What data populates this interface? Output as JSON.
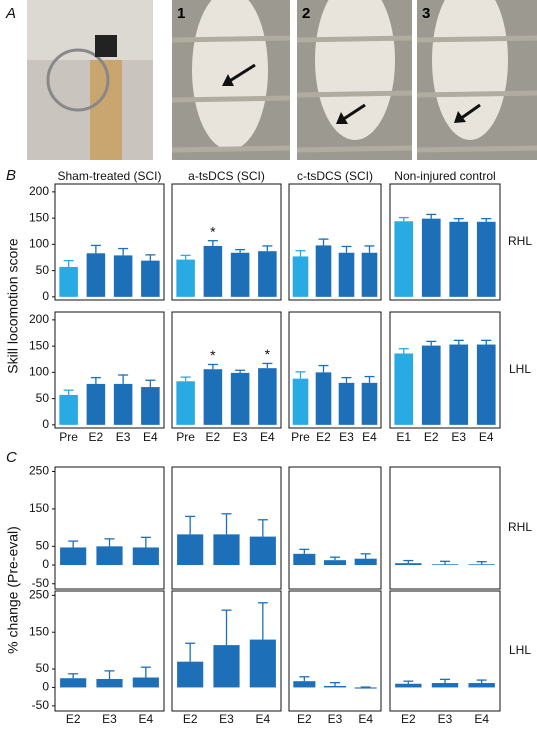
{
  "panel_labels": [
    "A",
    "B",
    "C"
  ],
  "photo_labels": [
    "1",
    "2",
    "3"
  ],
  "panel_b_ylabel": "Skill locomotion score",
  "panel_c_ylabel": "% change (Pre-eval)",
  "chart_data": [
    {
      "type": "bar",
      "title": "Sham-treated (SCI)",
      "categories": [
        null,
        null,
        null,
        null
      ],
      "values": [
        57,
        83,
        79,
        69
      ],
      "errors": [
        12,
        15,
        13,
        11
      ],
      "colors": [
        "#2aaae2",
        "#1d70b8",
        "#1d70b8",
        "#1d70b8"
      ],
      "ylim": [
        -6,
        215
      ],
      "yticks": [
        0,
        50,
        100,
        150,
        200
      ]
    },
    {
      "type": "bar",
      "title": "a-tsDCS (SCI)",
      "categories": [
        null,
        null,
        null,
        null
      ],
      "values": [
        71,
        97,
        84,
        87
      ],
      "errors": [
        8,
        10,
        6,
        10
      ],
      "colors": [
        "#2aaae2",
        "#1d70b8",
        "#1d70b8",
        "#1d70b8"
      ],
      "ylim": [
        -6,
        215
      ],
      "significance": [
        false,
        true,
        false,
        false
      ],
      "significance_marker": "*"
    },
    {
      "type": "bar",
      "title": "c-tsDCS (SCI)",
      "categories": [
        null,
        null,
        null,
        null
      ],
      "values": [
        77,
        98,
        84,
        84
      ],
      "errors": [
        11,
        12,
        12,
        13
      ],
      "colors": [
        "#2aaae2",
        "#1d70b8",
        "#1d70b8",
        "#1d70b8"
      ],
      "ylim": [
        -6,
        215
      ]
    },
    {
      "type": "bar",
      "title": "Non-injured control",
      "categories": [
        null,
        null,
        null,
        null
      ],
      "values": [
        144,
        149,
        143,
        143
      ],
      "errors": [
        7,
        8,
        6,
        6
      ],
      "colors": [
        "#2aaae2",
        "#1d70b8",
        "#1d70b8",
        "#1d70b8"
      ],
      "ylim": [
        -6,
        215
      ],
      "row_label": "RHL"
    },
    {
      "type": "bar",
      "categories": [
        "Pre",
        "E2",
        "E3",
        "E4"
      ],
      "values": [
        57,
        78,
        78,
        72
      ],
      "errors": [
        9,
        12,
        17,
        13
      ],
      "colors": [
        "#2aaae2",
        "#1d70b8",
        "#1d70b8",
        "#1d70b8"
      ],
      "ylim": [
        -6,
        215
      ],
      "yticks": [
        0,
        50,
        100,
        150,
        200
      ]
    },
    {
      "type": "bar",
      "categories": [
        "Pre",
        "E2",
        "E3",
        "E4"
      ],
      "values": [
        83,
        106,
        99,
        108
      ],
      "errors": [
        8,
        9,
        5,
        9
      ],
      "colors": [
        "#2aaae2",
        "#1d70b8",
        "#1d70b8",
        "#1d70b8"
      ],
      "ylim": [
        -6,
        215
      ],
      "significance": [
        false,
        true,
        false,
        true
      ],
      "significance_marker": "*"
    },
    {
      "type": "bar",
      "categories": [
        "Pre",
        "E2",
        "E3",
        "E4"
      ],
      "values": [
        88,
        100,
        80,
        80
      ],
      "errors": [
        13,
        13,
        10,
        12
      ],
      "colors": [
        "#2aaae2",
        "#1d70b8",
        "#1d70b8",
        "#1d70b8"
      ],
      "ylim": [
        -6,
        215
      ]
    },
    {
      "type": "bar",
      "categories": [
        "E1",
        "E2",
        "E3",
        "E4"
      ],
      "values": [
        136,
        151,
        153,
        153
      ],
      "errors": [
        9,
        8,
        8,
        8
      ],
      "colors": [
        "#2aaae2",
        "#1d70b8",
        "#1d70b8",
        "#1d70b8"
      ],
      "ylim": [
        -6,
        215
      ],
      "row_label": "LHL"
    },
    {
      "type": "bar",
      "categories": [
        null,
        null,
        null
      ],
      "values": [
        47,
        50,
        47
      ],
      "errors": [
        17,
        20,
        27
      ],
      "colors": [
        "#1d70b8",
        "#1d70b8",
        "#1d70b8"
      ],
      "ylim": [
        -64,
        262
      ],
      "yticks": [
        -50,
        0,
        50,
        150,
        250
      ]
    },
    {
      "type": "bar",
      "categories": [
        null,
        null,
        null
      ],
      "values": [
        82,
        82,
        76
      ],
      "errors": [
        48,
        55,
        45
      ],
      "colors": [
        "#1d70b8",
        "#1d70b8",
        "#1d70b8"
      ],
      "ylim": [
        -64,
        262
      ]
    },
    {
      "type": "bar",
      "categories": [
        null,
        null,
        null
      ],
      "values": [
        30,
        13,
        17
      ],
      "errors": [
        12,
        8,
        13
      ],
      "colors": [
        "#1d70b8",
        "#1d70b8",
        "#1d70b8"
      ],
      "ylim": [
        -64,
        262
      ]
    },
    {
      "type": "bar",
      "categories": [
        null,
        null,
        null
      ],
      "values": [
        5,
        2,
        2
      ],
      "errors": [
        7,
        8,
        7
      ],
      "colors": [
        "#1d70b8",
        "#1d70b8",
        "#1d70b8"
      ],
      "ylim": [
        -64,
        262
      ],
      "row_label": "RHL"
    },
    {
      "type": "bar",
      "categories": [
        "E2",
        "E3",
        "E4"
      ],
      "values": [
        25,
        23,
        27
      ],
      "errors": [
        12,
        22,
        28
      ],
      "colors": [
        "#1d70b8",
        "#1d70b8",
        "#1d70b8"
      ],
      "ylim": [
        -64,
        262
      ],
      "yticks": [
        -50,
        0,
        50,
        150,
        250
      ]
    },
    {
      "type": "bar",
      "categories": [
        "E2",
        "E3",
        "E4"
      ],
      "values": [
        70,
        115,
        130
      ],
      "errors": [
        50,
        95,
        100
      ],
      "colors": [
        "#1d70b8",
        "#1d70b8",
        "#1d70b8"
      ],
      "ylim": [
        -64,
        262
      ]
    },
    {
      "type": "bar",
      "categories": [
        "E2",
        "E3",
        "E4"
      ],
      "values": [
        17,
        4,
        -3
      ],
      "errors": [
        12,
        9,
        4
      ],
      "colors": [
        "#1d70b8",
        "#1d70b8",
        "#1d70b8"
      ],
      "ylim": [
        -64,
        262
      ]
    },
    {
      "type": "bar",
      "categories": [
        "E2",
        "E3",
        "E4"
      ],
      "values": [
        10,
        12,
        12
      ],
      "errors": [
        7,
        10,
        8
      ],
      "colors": [
        "#1d70b8",
        "#1d70b8",
        "#1d70b8"
      ],
      "ylim": [
        -64,
        262
      ],
      "row_label": "LHL"
    }
  ]
}
